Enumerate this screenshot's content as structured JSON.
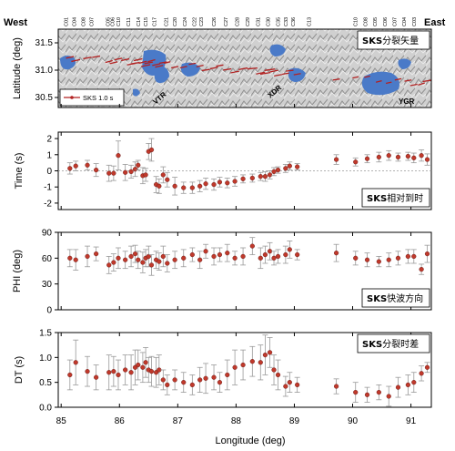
{
  "header": {
    "west": "West",
    "east": "East"
  },
  "map": {
    "ylabel": "Latitude (deg)",
    "yticks": [
      "31.5",
      "31.0",
      "30.5"
    ],
    "label_bold": "SKS",
    "label_rest": "分裂矢量",
    "legend_label": "SKS 1.0 s",
    "annotations": [
      "VTR",
      "XDR",
      "YGR"
    ],
    "colors": {
      "vector": "#b22222",
      "water": "#4a7ac8",
      "terrain": "#c9c9c9"
    }
  },
  "xaxis": {
    "label": "Longitude (deg)",
    "ticks": [
      "85",
      "86",
      "87",
      "88",
      "89",
      "90",
      "91"
    ]
  },
  "stations": {
    "labels": [
      "C01",
      "C04",
      "C08",
      "C07",
      "C05",
      "C06",
      "C10",
      "C11",
      "C14",
      "C15",
      "C17",
      "C21",
      "C20",
      "C24",
      "C22",
      "C23",
      "C26",
      "C27",
      "C28",
      "C29",
      "C31",
      "C30",
      "C35",
      "C33",
      "C36",
      "C13",
      "C10",
      "C08",
      "C05",
      "C06",
      "C07",
      "C04",
      "C03"
    ],
    "lon": [
      85.08,
      85.22,
      85.38,
      85.52,
      85.8,
      85.88,
      85.98,
      86.15,
      86.32,
      86.45,
      86.6,
      86.8,
      86.95,
      87.12,
      87.28,
      87.4,
      87.62,
      87.82,
      88.02,
      88.2,
      88.38,
      88.55,
      88.72,
      88.85,
      88.98,
      89.25,
      90.05,
      90.22,
      90.38,
      90.55,
      90.72,
      90.88,
      91.05
    ]
  },
  "chart_data": [
    {
      "type": "scatter",
      "title": "SKS相对到时",
      "ylabel": "Time (s)",
      "yticks": [
        "2",
        "1",
        "0",
        "-1",
        "-2"
      ],
      "ylim": [
        -2.4,
        2.4
      ],
      "xlim": [
        84.95,
        91.35
      ],
      "x": [
        85.15,
        85.25,
        85.45,
        85.6,
        85.82,
        85.9,
        85.98,
        86.1,
        86.2,
        86.27,
        86.32,
        86.4,
        86.45,
        86.5,
        86.55,
        86.63,
        86.68,
        86.75,
        86.82,
        86.95,
        87.1,
        87.25,
        87.38,
        87.48,
        87.62,
        87.72,
        87.85,
        87.98,
        88.12,
        88.28,
        88.42,
        88.5,
        88.58,
        88.65,
        88.72,
        88.85,
        88.92,
        89.05,
        89.72,
        90.05,
        90.25,
        90.45,
        90.62,
        90.78,
        90.95,
        91.05,
        91.18,
        91.28
      ],
      "y": [
        0.15,
        0.3,
        0.35,
        0.05,
        -0.15,
        -0.15,
        0.95,
        -0.1,
        -0.05,
        0.1,
        0.35,
        -0.3,
        -0.25,
        1.2,
        1.3,
        -0.85,
        -0.95,
        -0.25,
        -0.55,
        -0.95,
        -1.05,
        -1.05,
        -0.95,
        -0.8,
        -0.85,
        -0.7,
        -0.75,
        -0.65,
        -0.5,
        -0.45,
        -0.35,
        -0.35,
        -0.25,
        -0.05,
        0.05,
        0.15,
        0.3,
        0.25,
        0.7,
        0.55,
        0.75,
        0.85,
        0.95,
        0.85,
        0.9,
        0.8,
        0.95,
        0.7
      ],
      "err": [
        0.35,
        0.3,
        0.3,
        0.4,
        0.5,
        0.45,
        0.9,
        0.5,
        0.4,
        0.45,
        0.3,
        0.5,
        0.4,
        0.5,
        0.7,
        0.5,
        0.45,
        0.5,
        0.45,
        0.55,
        0.35,
        0.35,
        0.35,
        0.35,
        0.35,
        0.3,
        0.3,
        0.3,
        0.25,
        0.25,
        0.25,
        0.3,
        0.25,
        0.25,
        0.2,
        0.25,
        0.25,
        0.2,
        0.3,
        0.25,
        0.25,
        0.3,
        0.3,
        0.25,
        0.25,
        0.3,
        0.35,
        0.35
      ],
      "color": "#c0392b"
    },
    {
      "type": "scatter",
      "title": "SKS快波方向",
      "ylabel": "PHI (deg)",
      "yticks": [
        "90",
        "60",
        "30",
        "0"
      ],
      "ylim": [
        0,
        90
      ],
      "xlim": [
        84.95,
        91.35
      ],
      "x": [
        85.15,
        85.25,
        85.45,
        85.6,
        85.82,
        85.9,
        85.98,
        86.1,
        86.2,
        86.27,
        86.32,
        86.4,
        86.45,
        86.5,
        86.55,
        86.63,
        86.68,
        86.75,
        86.82,
        86.95,
        87.1,
        87.25,
        87.38,
        87.48,
        87.62,
        87.72,
        87.85,
        87.98,
        88.12,
        88.28,
        88.42,
        88.5,
        88.58,
        88.65,
        88.72,
        88.85,
        88.92,
        89.05,
        89.72,
        90.05,
        90.25,
        90.45,
        90.62,
        90.78,
        90.95,
        91.05,
        91.18,
        91.28
      ],
      "y": [
        60,
        58,
        62,
        65,
        52,
        55,
        60,
        58,
        62,
        65,
        58,
        55,
        60,
        62,
        52,
        58,
        56,
        62,
        54,
        58,
        60,
        64,
        58,
        68,
        62,
        64,
        66,
        60,
        62,
        74,
        60,
        64,
        68,
        60,
        62,
        64,
        70,
        64,
        66,
        60,
        58,
        56,
        58,
        60,
        62,
        62,
        47,
        65
      ],
      "err": [
        10,
        12,
        12,
        8,
        10,
        10,
        12,
        10,
        12,
        10,
        10,
        12,
        10,
        12,
        12,
        10,
        10,
        12,
        10,
        10,
        10,
        8,
        10,
        8,
        10,
        8,
        10,
        8,
        10,
        10,
        12,
        10,
        10,
        8,
        8,
        10,
        10,
        6,
        10,
        8,
        8,
        6,
        8,
        8,
        8,
        8,
        6,
        10
      ],
      "color": "#c0392b"
    },
    {
      "type": "scatter",
      "title": "SKS分裂时差",
      "ylabel": "DT (s)",
      "yticks": [
        "1.5",
        "1.0",
        "0.5",
        "0.0"
      ],
      "ylim": [
        0,
        1.5
      ],
      "xlim": [
        84.95,
        91.35
      ],
      "x": [
        85.15,
        85.25,
        85.45,
        85.6,
        85.82,
        85.9,
        85.98,
        86.1,
        86.2,
        86.27,
        86.32,
        86.4,
        86.45,
        86.5,
        86.55,
        86.63,
        86.68,
        86.75,
        86.82,
        86.95,
        87.1,
        87.25,
        87.38,
        87.48,
        87.62,
        87.72,
        87.85,
        87.98,
        88.12,
        88.28,
        88.42,
        88.5,
        88.58,
        88.65,
        88.72,
        88.85,
        88.92,
        89.05,
        89.72,
        90.05,
        90.25,
        90.45,
        90.62,
        90.78,
        90.95,
        91.05,
        91.18,
        91.28
      ],
      "y": [
        0.65,
        0.9,
        0.72,
        0.6,
        0.7,
        0.72,
        0.65,
        0.75,
        0.7,
        0.8,
        0.85,
        0.8,
        0.9,
        0.75,
        0.72,
        0.7,
        0.75,
        0.55,
        0.45,
        0.55,
        0.5,
        0.45,
        0.55,
        0.58,
        0.6,
        0.5,
        0.65,
        0.8,
        0.85,
        0.92,
        0.9,
        1.05,
        1.1,
        0.75,
        0.65,
        0.42,
        0.5,
        0.45,
        0.42,
        0.3,
        0.25,
        0.3,
        0.22,
        0.4,
        0.45,
        0.5,
        0.68,
        0.8
      ],
      "err": [
        0.3,
        0.45,
        0.3,
        0.25,
        0.35,
        0.3,
        0.3,
        0.3,
        0.35,
        0.35,
        0.3,
        0.3,
        0.3,
        0.25,
        0.3,
        0.3,
        0.3,
        0.2,
        0.2,
        0.2,
        0.2,
        0.2,
        0.25,
        0.3,
        0.25,
        0.2,
        0.3,
        0.35,
        0.3,
        0.3,
        0.35,
        0.4,
        0.3,
        0.3,
        0.3,
        0.2,
        0.2,
        0.15,
        0.15,
        0.2,
        0.15,
        0.15,
        0.2,
        0.2,
        0.2,
        0.2,
        0.15,
        0.1
      ],
      "color": "#c0392b"
    }
  ]
}
